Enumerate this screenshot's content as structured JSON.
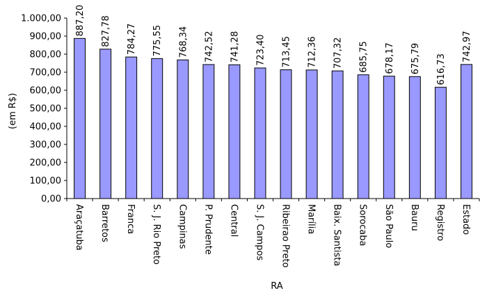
{
  "chart_data": {
    "type": "bar",
    "categories": [
      "Araçatuba",
      "Barretos",
      "Franca",
      "S. J. Rio Preto",
      "Campinas",
      "P. Prudente",
      "Central",
      "S. J. Campos",
      "Ribeirao Preto",
      "Marília",
      "Baix. Santista",
      "Sorocaba",
      "São Paulo",
      "Bauru",
      "Registro",
      "Estado"
    ],
    "values": [
      887.2,
      827.78,
      784.27,
      775.55,
      768.34,
      742.52,
      741.28,
      723.4,
      713.45,
      712.36,
      707.32,
      685.75,
      678.17,
      675.79,
      616.73,
      742.97
    ],
    "value_labels": [
      "887,20",
      "827,78",
      "784,27",
      "775,55",
      "768,34",
      "742,52",
      "741,28",
      "723,40",
      "713,45",
      "712,36",
      "707,32",
      "685,75",
      "678,17",
      "675,79",
      "616,73",
      "742,97"
    ],
    "ylabel": "(em R$)",
    "xlabel": "RA",
    "ylim": [
      0,
      1000
    ],
    "y_ticks": [
      0,
      100,
      200,
      300,
      400,
      500,
      600,
      700,
      800,
      900,
      1000
    ],
    "y_tick_labels": [
      "0,00",
      "100,00",
      "200,00",
      "300,00",
      "400,00",
      "500,00",
      "600,00",
      "700,00",
      "800,00",
      "900,00",
      "1.000,00"
    ],
    "bar_color": "#9999ff",
    "bar_edge_color": "#000000",
    "grid": false,
    "legend": "none"
  }
}
